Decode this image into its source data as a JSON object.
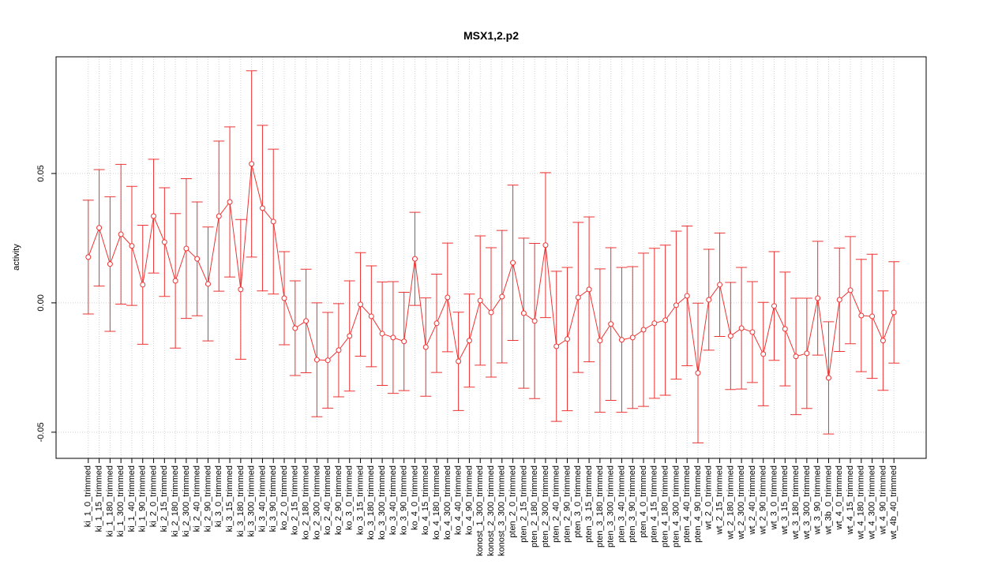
{
  "chart_data": {
    "type": "errorbar",
    "title": "MSX1,2.p2",
    "ylabel": "activity",
    "categories": [
      "ki_1_0_trimmed",
      "ki_1_15_trimmed",
      "ki_1_180_trimmed",
      "ki_1_300_trimmed",
      "ki_1_40_trimmed",
      "ki_1_90_trimmed",
      "ki_2_0_trimmed",
      "ki_2_15_trimmed",
      "ki_2_180_trimmed",
      "ki_2_300_trimmed",
      "ki_2_40_trimmed",
      "ki_2_90_trimmed",
      "ki_3_0_trimmed",
      "ki_3_15_trimmed",
      "ki_3_180_trimmed",
      "ki_3_300_trimmed",
      "ki_3_40_trimmed",
      "ki_3_90_trimmed",
      "ko_2_0_trimmed",
      "ko_2_15_trimmed",
      "ko_2_180_trimmed",
      "ko_2_300_trimmed",
      "ko_2_40_trimmed",
      "ko_2_90_trimmed",
      "ko_3_0_trimmed",
      "ko_3_15_trimmed",
      "ko_3_180_trimmed",
      "ko_3_300_trimmed",
      "ko_3_40_trimmed",
      "ko_3_90_trimmed",
      "ko_4_0_trimmed",
      "ko_4_15_trimmed",
      "ko_4_180_trimmed",
      "ko_4_300_trimmed",
      "ko_4_40_trimmed",
      "ko_4_90_trimmed",
      "konost_1_300_trimmed",
      "konost_2_300_trimmed",
      "konost_3_300_trimmed",
      "pten_2_0_trimmed",
      "pten_2_15_trimmed",
      "pten_2_180_trimmed",
      "pten_2_300_trimmed",
      "pten_2_40_trimmed",
      "pten_2_90_trimmed",
      "pten_3_0_trimmed",
      "pten_3_15_trimmed",
      "pten_3_180_trimmed",
      "pten_3_300_trimmed",
      "pten_3_40_trimmed",
      "pten_3_90_trimmed",
      "pten_4_0_trimmed",
      "pten_4_15_trimmed",
      "pten_4_180_trimmed",
      "pten_4_300_trimmed",
      "pten_4_40_trimmed",
      "pten_4_90_trimmed",
      "wt_2_0_trimmed",
      "wt_2_15_trimmed",
      "wt_2_180_trimmed",
      "wt_2_300_trimmed",
      "wt_2_40_trimmed",
      "wt_2_90_trimmed",
      "wt_3_0_trimmed",
      "wt_3_15_trimmed",
      "wt_3_180_trimmed",
      "wt_3_300_trimmed",
      "wt_3_90_trimmed",
      "wt_3b_0_trimmed",
      "wt_4_0_trimmed",
      "wt_4_15_trimmed",
      "wt_4_180_trimmed",
      "wt_4_300_trimmed",
      "wt_4_90_trimmed",
      "wt_4b_40_trimmed"
    ],
    "series": [
      {
        "color": "#ee3333",
        "values": [
          0.0177,
          0.029,
          0.015,
          0.0265,
          0.022,
          0.007,
          0.0335,
          0.0235,
          0.0085,
          0.021,
          0.017,
          0.0073,
          0.0335,
          0.039,
          0.0052,
          0.0537,
          0.0366,
          0.0314,
          0.0018,
          -0.0098,
          -0.007,
          -0.022,
          -0.0222,
          -0.0183,
          -0.0128,
          -0.0006,
          -0.0052,
          -0.0119,
          -0.0134,
          -0.0149,
          0.017,
          -0.0171,
          -0.0079,
          0.0021,
          -0.0226,
          -0.0146,
          0.0009,
          -0.0037,
          0.0024,
          0.0155,
          -0.004,
          -0.007,
          0.0223,
          -0.0168,
          -0.014,
          0.0021,
          0.0052,
          -0.0146,
          -0.0082,
          -0.0143,
          -0.0134,
          -0.0104,
          -0.0079,
          -0.0067,
          -0.0009,
          0.0027,
          -0.0271,
          0.0012,
          0.007,
          -0.0128,
          -0.0098,
          -0.0113,
          -0.0198,
          -0.0012,
          -0.0101,
          -0.0207,
          -0.0195,
          0.0018,
          -0.029,
          0.0012,
          0.0049,
          -0.0049,
          -0.0052,
          -0.0146,
          -0.0037
        ],
        "errors": [
          0.022,
          0.0225,
          0.026,
          0.027,
          0.023,
          0.023,
          0.022,
          0.021,
          0.026,
          0.027,
          0.022,
          0.022,
          0.029,
          0.029,
          0.027,
          0.036,
          0.032,
          0.028,
          0.018,
          0.0183,
          0.02,
          0.022,
          0.0185,
          0.018,
          0.0213,
          0.02,
          0.0195,
          0.02,
          0.0216,
          0.019,
          0.018,
          0.019,
          0.019,
          0.021,
          0.019,
          0.018,
          0.025,
          0.025,
          0.0256,
          0.03,
          0.029,
          0.03,
          0.028,
          0.029,
          0.0277,
          0.029,
          0.028,
          0.0277,
          0.0295,
          0.028,
          0.0274,
          0.0296,
          0.029,
          0.029,
          0.0286,
          0.027,
          0.027,
          0.0195,
          0.02,
          0.0207,
          0.0235,
          0.0195,
          0.02,
          0.021,
          0.022,
          0.0225,
          0.0213,
          0.022,
          0.0217,
          0.02,
          0.0207,
          0.0217,
          0.024,
          0.0192,
          0.0196
        ]
      }
    ],
    "xlim": [
      -1.96,
      77.96
    ],
    "ylim": [
      -0.0601,
      0.0951
    ],
    "yticks": [
      -0.05,
      {
        "value": 0,
        "label": "0.00"
      },
      0.05
    ],
    "grid": true
  }
}
